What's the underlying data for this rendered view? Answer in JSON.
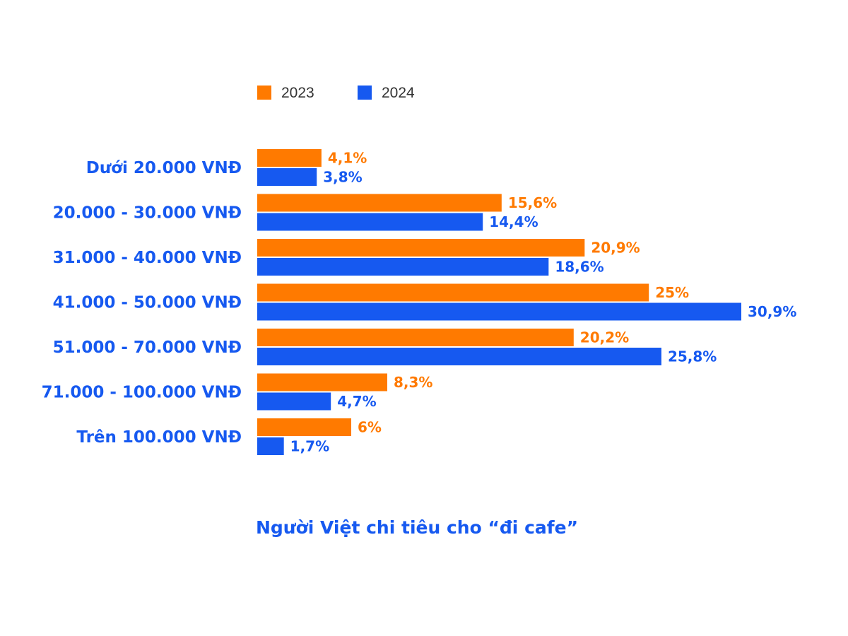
{
  "colors": {
    "series_2023": "#FF7A00",
    "series_2024": "#1659F0",
    "category_text": "#1659F0",
    "legend_text": "#333333",
    "title_text": "#1659F0"
  },
  "chart_data": {
    "type": "bar",
    "orientation": "horizontal",
    "title": "Người Việt chi tiêu cho “đi cafe”",
    "categories": [
      "Dưới 20.000 VNĐ",
      "20.000 - 30.000 VNĐ",
      "31.000 - 40.000 VNĐ",
      "41.000 - 50.000 VNĐ",
      "51.000 - 70.000 VNĐ",
      "71.000 - 100.000 VNĐ",
      "Trên 100.000 VNĐ"
    ],
    "series": [
      {
        "name": "2023",
        "values": [
          4.1,
          15.6,
          20.9,
          25,
          20.2,
          8.3,
          6
        ],
        "labels": [
          "4,1%",
          "15,6%",
          "20,9%",
          "25%",
          "20,2%",
          "8,3%",
          "6%"
        ]
      },
      {
        "name": "2024",
        "values": [
          3.8,
          14.4,
          18.6,
          30.9,
          25.8,
          4.7,
          1.7
        ],
        "labels": [
          "3,8%",
          "14,4%",
          "18,6%",
          "30,9%",
          "25,8%",
          "4,7%",
          "1,7%"
        ]
      }
    ],
    "unit": "%",
    "xlim": [
      0,
      31
    ],
    "grid": false,
    "legend": "top"
  }
}
